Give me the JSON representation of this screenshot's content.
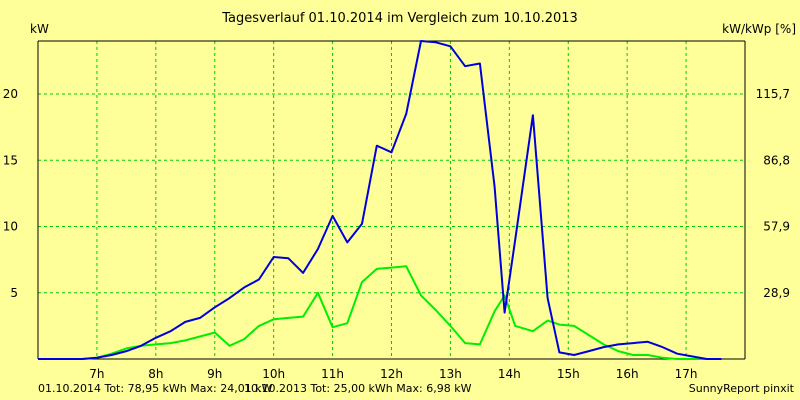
{
  "chart_data": {
    "type": "line",
    "title": "Tagesverlauf 01.10.2014 im Vergleich zum 10.10.2013",
    "y_left_label": "kW",
    "y_right_label": "kW/kWp [%]",
    "x_tick_labels": [
      "7h",
      "8h",
      "9h",
      "10h",
      "11h",
      "12h",
      "13h",
      "14h",
      "15h",
      "16h",
      "17h"
    ],
    "x_ticks": [
      7,
      8,
      9,
      10,
      11,
      12,
      13,
      14,
      15,
      16,
      17
    ],
    "xlim": [
      6.0,
      18.0
    ],
    "y_ticks": [
      5,
      10,
      15,
      20
    ],
    "y_tick_labels": [
      "5",
      "10",
      "15",
      "20"
    ],
    "y_right_tick_labels": [
      "28,9",
      "57,9",
      "86,8",
      "115,7"
    ],
    "ylim": [
      0,
      24.0
    ],
    "grid": true,
    "series": [
      {
        "name": "01.10.2014",
        "color": "#0000dd",
        "x": [
          6.0,
          6.25,
          6.5,
          6.75,
          7.0,
          7.25,
          7.5,
          7.75,
          8.0,
          8.25,
          8.5,
          8.75,
          9.0,
          9.25,
          9.5,
          9.75,
          10.0,
          10.25,
          10.5,
          10.75,
          11.0,
          11.25,
          11.5,
          11.75,
          12.0,
          12.25,
          12.5,
          12.75,
          13.0,
          13.25,
          13.5,
          13.75,
          13.92,
          14.1,
          14.4,
          14.65,
          14.85,
          15.1,
          15.35,
          15.6,
          15.85,
          16.1,
          16.35,
          16.6,
          16.85,
          17.1,
          17.35,
          17.6
        ],
        "y": [
          0.0,
          0.0,
          0.0,
          0.0,
          0.1,
          0.3,
          0.6,
          1.0,
          1.6,
          2.1,
          2.8,
          3.1,
          3.9,
          4.6,
          5.4,
          6.0,
          7.7,
          7.6,
          6.5,
          8.3,
          10.8,
          8.8,
          10.2,
          16.1,
          15.6,
          18.5,
          24.0,
          23.9,
          23.6,
          22.1,
          22.3,
          13.0,
          3.5,
          9.0,
          18.4,
          4.6,
          0.5,
          0.3,
          0.6,
          0.9,
          1.1,
          1.2,
          1.3,
          0.9,
          0.4,
          0.2,
          0.0,
          0.0
        ]
      },
      {
        "name": "10.10.2013",
        "color": "#00ee00",
        "x": [
          6.0,
          6.25,
          6.5,
          6.75,
          7.0,
          7.25,
          7.5,
          7.75,
          8.0,
          8.25,
          8.5,
          8.75,
          9.0,
          9.25,
          9.5,
          9.75,
          10.0,
          10.25,
          10.5,
          10.75,
          11.0,
          11.25,
          11.5,
          11.75,
          12.0,
          12.25,
          12.5,
          12.75,
          13.0,
          13.25,
          13.5,
          13.75,
          13.92,
          14.1,
          14.4,
          14.65,
          14.85,
          15.1,
          15.35,
          15.6,
          15.85,
          16.1,
          16.35,
          16.6,
          16.85,
          17.1,
          17.35,
          17.6
        ],
        "y": [
          0.0,
          0.0,
          0.0,
          0.0,
          0.1,
          0.4,
          0.8,
          1.0,
          1.1,
          1.2,
          1.4,
          1.7,
          2.0,
          1.0,
          1.5,
          2.5,
          3.0,
          3.1,
          3.2,
          5.0,
          2.4,
          2.7,
          5.8,
          6.8,
          6.9,
          7.0,
          4.8,
          3.7,
          2.5,
          1.2,
          1.1,
          3.6,
          4.8,
          2.5,
          2.1,
          2.9,
          2.6,
          2.5,
          1.8,
          1.1,
          0.6,
          0.3,
          0.3,
          0.1,
          0.0,
          0.0,
          0.0,
          0.0
        ]
      }
    ],
    "legend": [
      {
        "text": "01.10.2014 Tot: 78,95 kWh Max: 24,01 kW",
        "color": "#0000dd"
      },
      {
        "text": "10.10.2013 Tot: 25,00 kWh Max: 6,98 kW",
        "color": "#00cc00"
      }
    ],
    "credit": "SunnyReport pinxit"
  }
}
